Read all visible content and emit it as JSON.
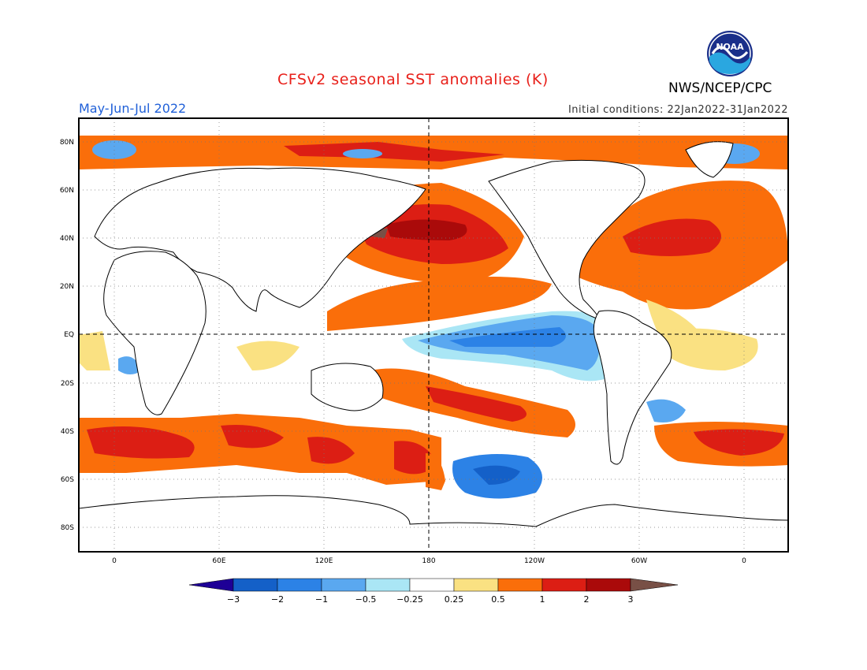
{
  "header": {
    "title": "CFSv2 seasonal SST anomalies (K)",
    "org": "NWS/NCEP/CPC",
    "period": "May-Jun-Jul 2022",
    "initial_conditions": "Initial conditions: 22Jan2022-31Jan2022",
    "logo_text": "NOAA"
  },
  "axes": {
    "lat_labels": [
      "80N",
      "60N",
      "40N",
      "20N",
      "EQ",
      "20S",
      "40S",
      "60S",
      "80S"
    ],
    "lon_labels": [
      "0",
      "60E",
      "120E",
      "180",
      "120W",
      "60W",
      "0"
    ]
  },
  "colorbar": {
    "labels": [
      "−3",
      "−2",
      "−1",
      "−0.5",
      "−0.25",
      "0.25",
      "0.5",
      "1",
      "2",
      "3"
    ],
    "colors": [
      "#1e0096",
      "#1460c8",
      "#2c82e6",
      "#5aa8f0",
      "#aae6f5",
      "#ffffff",
      "#fae182",
      "#fa6e0a",
      "#dc1e14",
      "#aa0a0a",
      "#785046"
    ]
  },
  "colors": {
    "land": "#ffffff",
    "coast": "#000000",
    "title": "#e8201a",
    "period": "#2060d8"
  }
}
